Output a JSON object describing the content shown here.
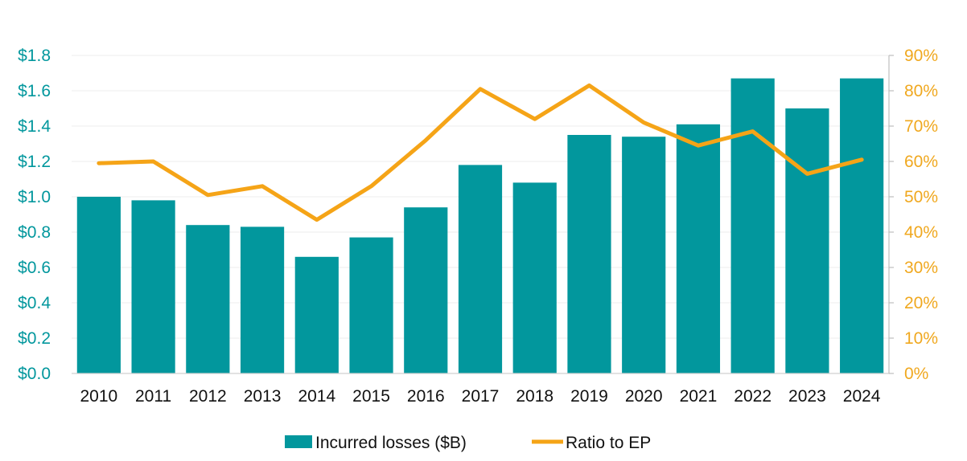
{
  "chart_data": {
    "type": "bar",
    "categories": [
      "2010",
      "2011",
      "2012",
      "2013",
      "2014",
      "2015",
      "2016",
      "2017",
      "2018",
      "2019",
      "2020",
      "2021",
      "2022",
      "2023",
      "2024"
    ],
    "series": [
      {
        "name": "Incurred losses ($B)",
        "type": "bar",
        "axis": "left",
        "values": [
          1.0,
          0.98,
          0.84,
          0.83,
          0.66,
          0.77,
          0.94,
          1.18,
          1.08,
          1.35,
          1.34,
          1.41,
          1.67,
          1.5,
          1.67
        ]
      },
      {
        "name": "Ratio to EP",
        "type": "line",
        "axis": "right",
        "values": [
          59.5,
          60,
          50.5,
          53,
          43.5,
          53,
          66,
          80.5,
          72,
          81.5,
          71,
          64.5,
          68.5,
          56.5,
          60.5
        ]
      }
    ],
    "y_left": {
      "ylim": [
        0,
        1.8
      ],
      "tick_labels": [
        "$0.0",
        "$0.2",
        "$0.4",
        "$0.6",
        "$0.8",
        "$1.0",
        "$1.2",
        "$1.4",
        "$1.6",
        "$1.8"
      ]
    },
    "y_right": {
      "ylim": [
        0,
        90
      ],
      "tick_labels": [
        "0%",
        "10%",
        "20%",
        "30%",
        "40%",
        "50%",
        "60%",
        "70%",
        "80%",
        "90%"
      ]
    },
    "title": "",
    "xlabel": "",
    "ylabel": "",
    "grid": true,
    "legend_position": "bottom-center",
    "colors": {
      "bar": "#02979d",
      "line": "#f5a417",
      "left_axis_text": "#02979d",
      "right_axis_text": "#f0a81f"
    }
  }
}
